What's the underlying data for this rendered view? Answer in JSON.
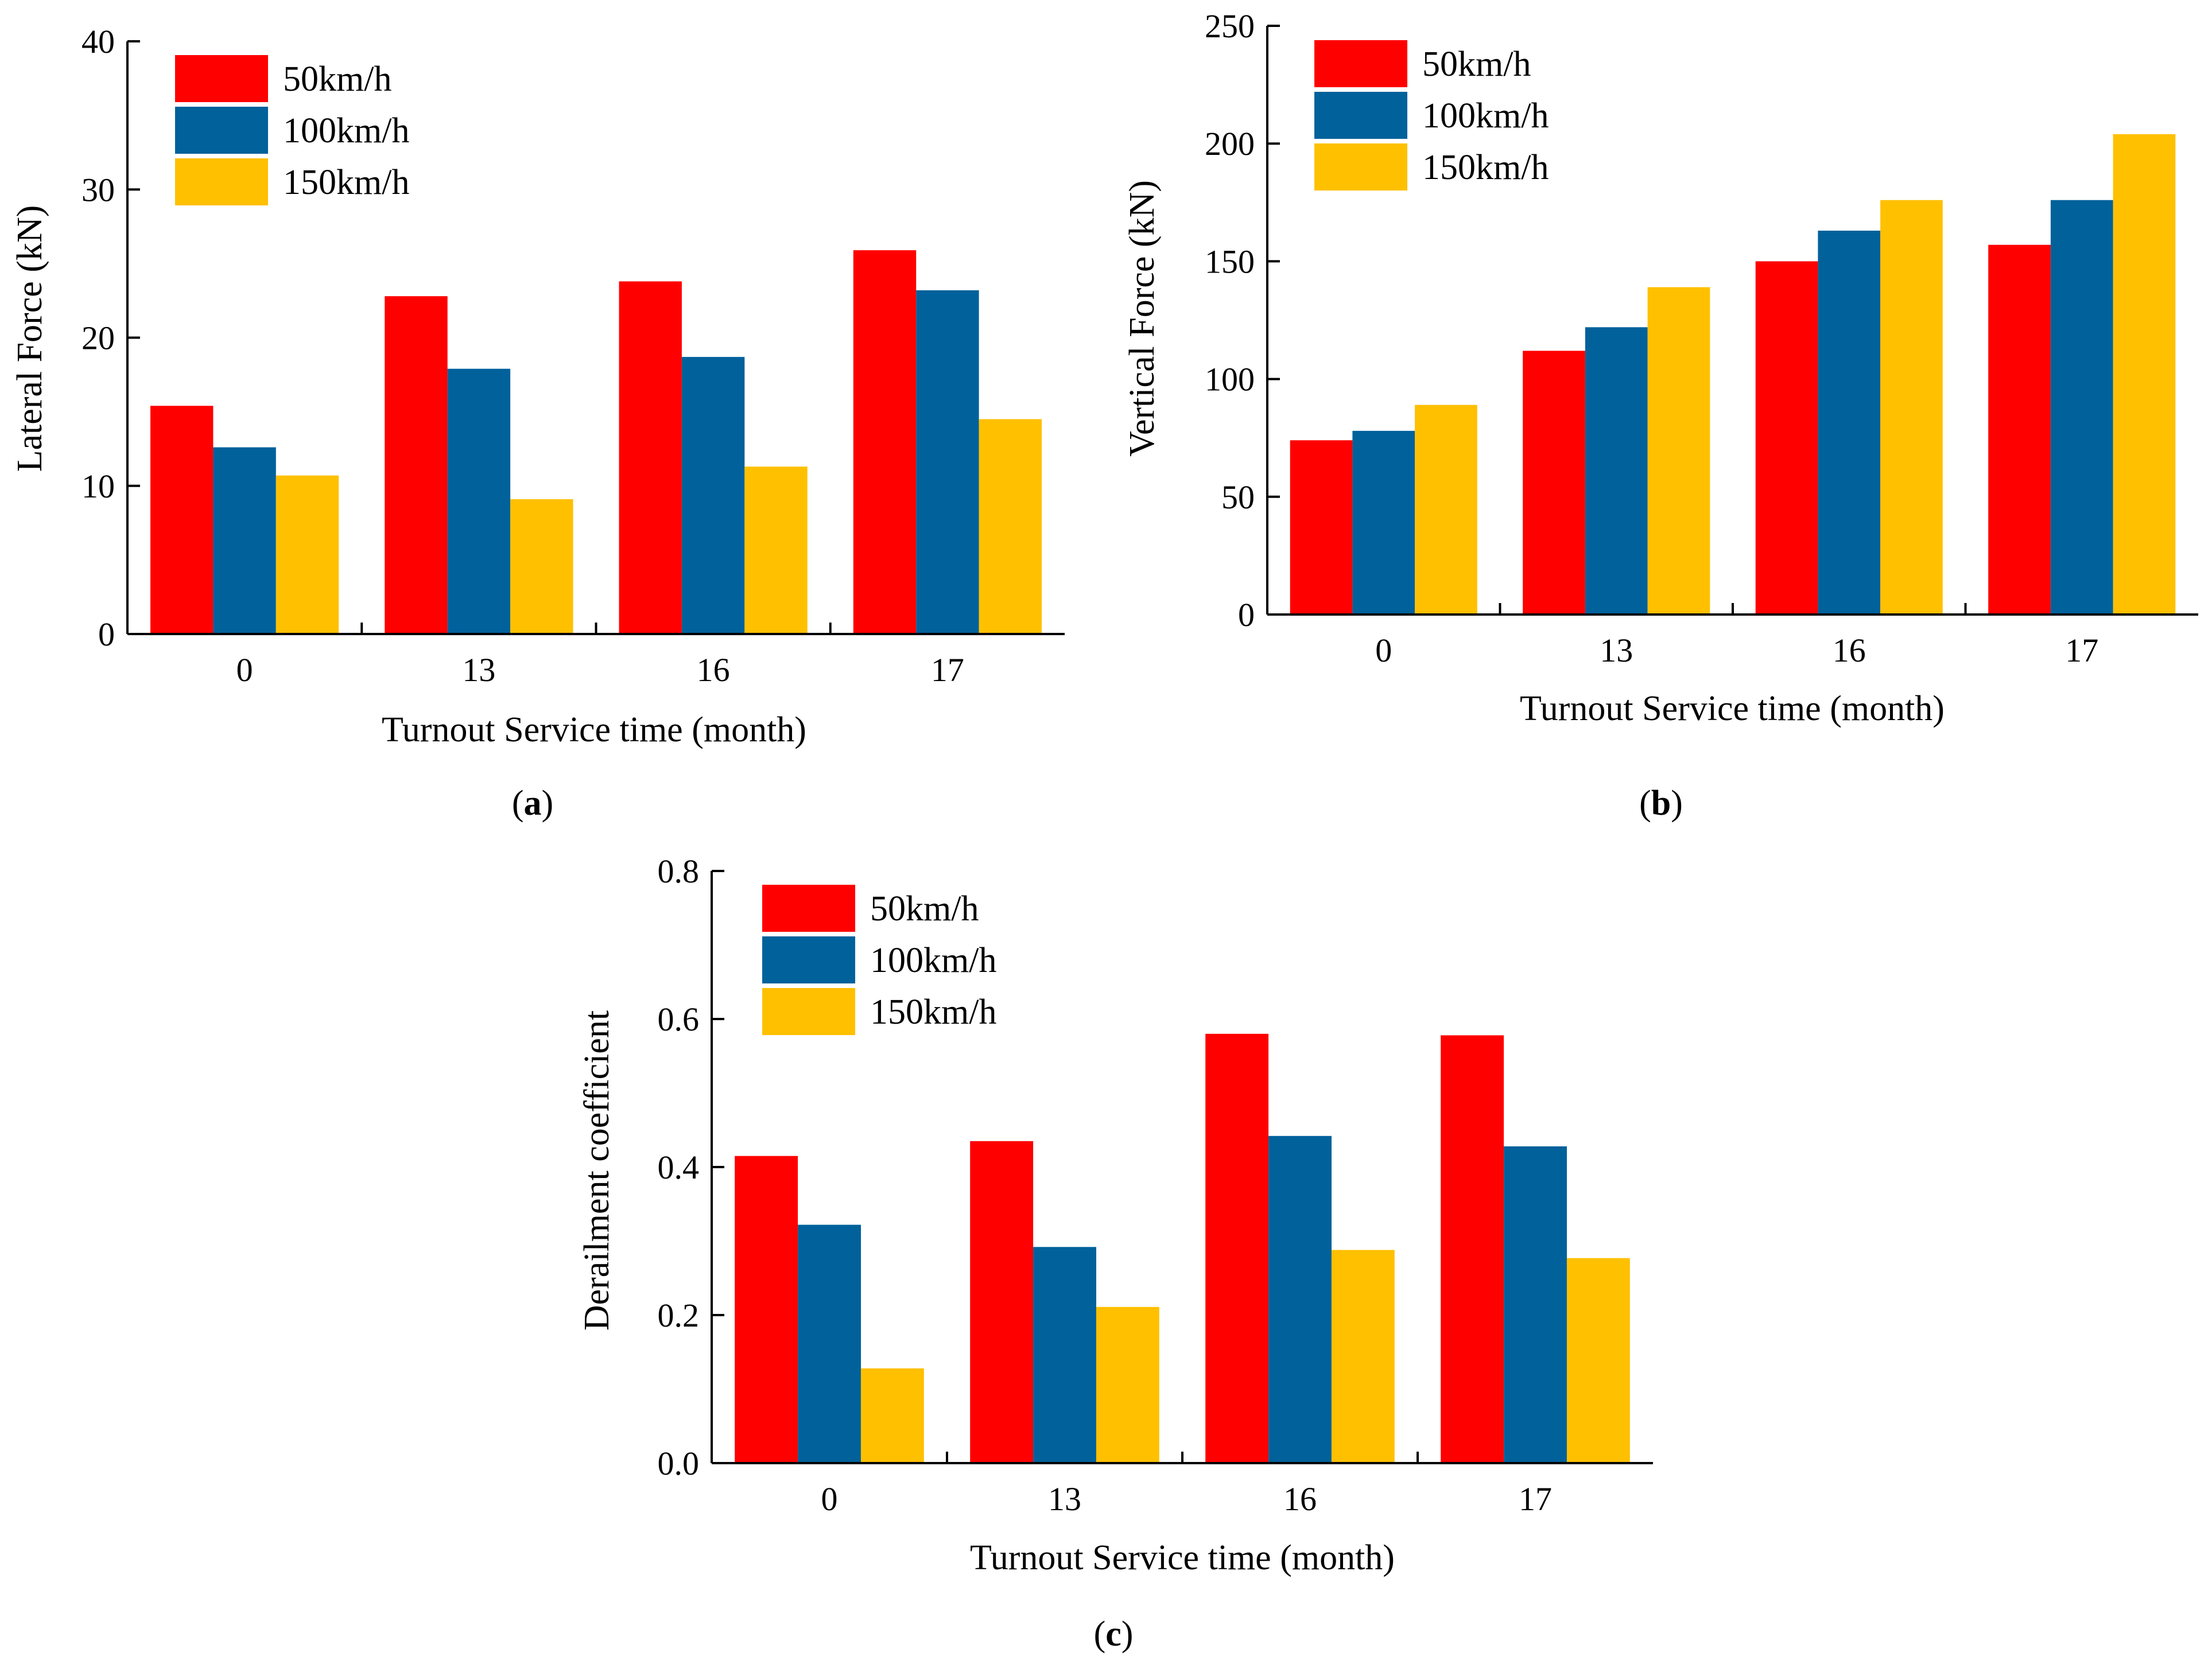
{
  "figure": {
    "panels": [
      "(a)",
      "(b)",
      "(c)"
    ]
  },
  "colors": {
    "series": [
      "#ff0000",
      "#00619b",
      "#ffc000"
    ],
    "axis": "#000000"
  },
  "chart_data": [
    {
      "id": "a",
      "type": "bar",
      "panel_label": "(a)",
      "title": "",
      "xlabel": "Turnout Service time (month)",
      "ylabel": "Lateral Force (kN)",
      "categories": [
        "0",
        "13",
        "16",
        "17"
      ],
      "ylim": [
        0,
        40
      ],
      "yticks": [
        "0",
        "10",
        "20",
        "30",
        "40"
      ],
      "ytick_values": [
        0,
        10,
        20,
        30,
        40
      ],
      "legend_position": "top-left",
      "grid": false,
      "series": [
        {
          "name": "50km/h",
          "values": [
            15.4,
            22.8,
            23.8,
            25.9
          ]
        },
        {
          "name": "100km/h",
          "values": [
            12.6,
            17.9,
            18.7,
            23.2
          ]
        },
        {
          "name": "150km/h",
          "values": [
            10.7,
            9.1,
            11.3,
            14.5
          ]
        }
      ]
    },
    {
      "id": "b",
      "type": "bar",
      "panel_label": "(b)",
      "title": "",
      "xlabel": "Turnout Service time (month)",
      "ylabel": "Vertical Force (kN)",
      "categories": [
        "0",
        "13",
        "16",
        "17"
      ],
      "ylim": [
        0,
        250
      ],
      "yticks": [
        "0",
        "50",
        "100",
        "150",
        "200",
        "250"
      ],
      "ytick_values": [
        0,
        50,
        100,
        150,
        200,
        250
      ],
      "legend_position": "top-left",
      "grid": false,
      "series": [
        {
          "name": "50km/h",
          "values": [
            74,
            112,
            150,
            157
          ]
        },
        {
          "name": "100km/h",
          "values": [
            78,
            122,
            163,
            176
          ]
        },
        {
          "name": "150km/h",
          "values": [
            89,
            139,
            176,
            204
          ]
        }
      ]
    },
    {
      "id": "c",
      "type": "bar",
      "panel_label": "(c)",
      "title": "",
      "xlabel": "Turnout Service time (month)",
      "ylabel": "Derailment coefficient",
      "categories": [
        "0",
        "13",
        "16",
        "17"
      ],
      "ylim": [
        0,
        0.8
      ],
      "yticks": [
        "0.0",
        "0.2",
        "0.4",
        "0.6",
        "0.8"
      ],
      "ytick_values": [
        0,
        0.2,
        0.4,
        0.6,
        0.8
      ],
      "legend_position": "top-left",
      "grid": false,
      "series": [
        {
          "name": "50km/h",
          "values": [
            0.415,
            0.435,
            0.58,
            0.578
          ]
        },
        {
          "name": "100km/h",
          "values": [
            0.322,
            0.292,
            0.442,
            0.428
          ]
        },
        {
          "name": "150km/h",
          "values": [
            0.128,
            0.211,
            0.288,
            0.277
          ]
        }
      ]
    }
  ]
}
